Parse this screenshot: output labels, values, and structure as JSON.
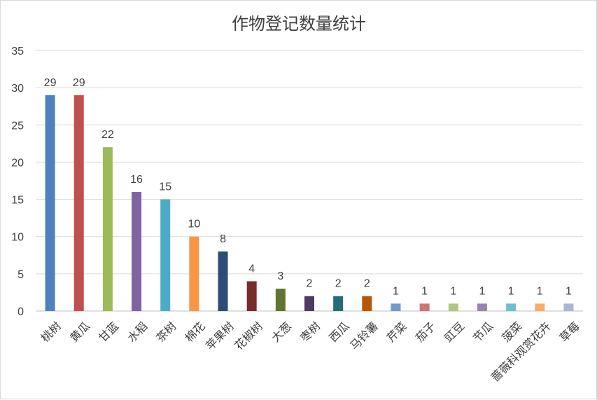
{
  "chart_data": {
    "type": "bar",
    "title": "作物登记数量统计",
    "xlabel": "",
    "ylabel": "",
    "ylim": [
      0,
      35
    ],
    "yticks": [
      0,
      5,
      10,
      15,
      20,
      25,
      30,
      35
    ],
    "grid": true,
    "legend": "none",
    "categories": [
      "桃树",
      "黄瓜",
      "甘蓝",
      "水稻",
      "茶树",
      "棉花",
      "苹果树",
      "花椒树",
      "大葱",
      "枣树",
      "西瓜",
      "马铃薯",
      "芹菜",
      "茄子",
      "豇豆",
      "节瓜",
      "菠菜",
      "蔷薇科观赏花卉",
      "草莓"
    ],
    "values": [
      29,
      29,
      22,
      16,
      15,
      10,
      8,
      4,
      3,
      2,
      2,
      2,
      1,
      1,
      1,
      1,
      1,
      1,
      1
    ],
    "colors": [
      "#4F81BD",
      "#C0504D",
      "#9BBB59",
      "#8064A2",
      "#4BACC6",
      "#F79646",
      "#2C4D75",
      "#772C2A",
      "#5F7530",
      "#4D3B62",
      "#276A7C",
      "#B65708",
      "#729ACA",
      "#CD7371",
      "#AFC97A",
      "#9983B5",
      "#6FBDD1",
      "#F9AB6B",
      "#A7B9D6"
    ]
  }
}
